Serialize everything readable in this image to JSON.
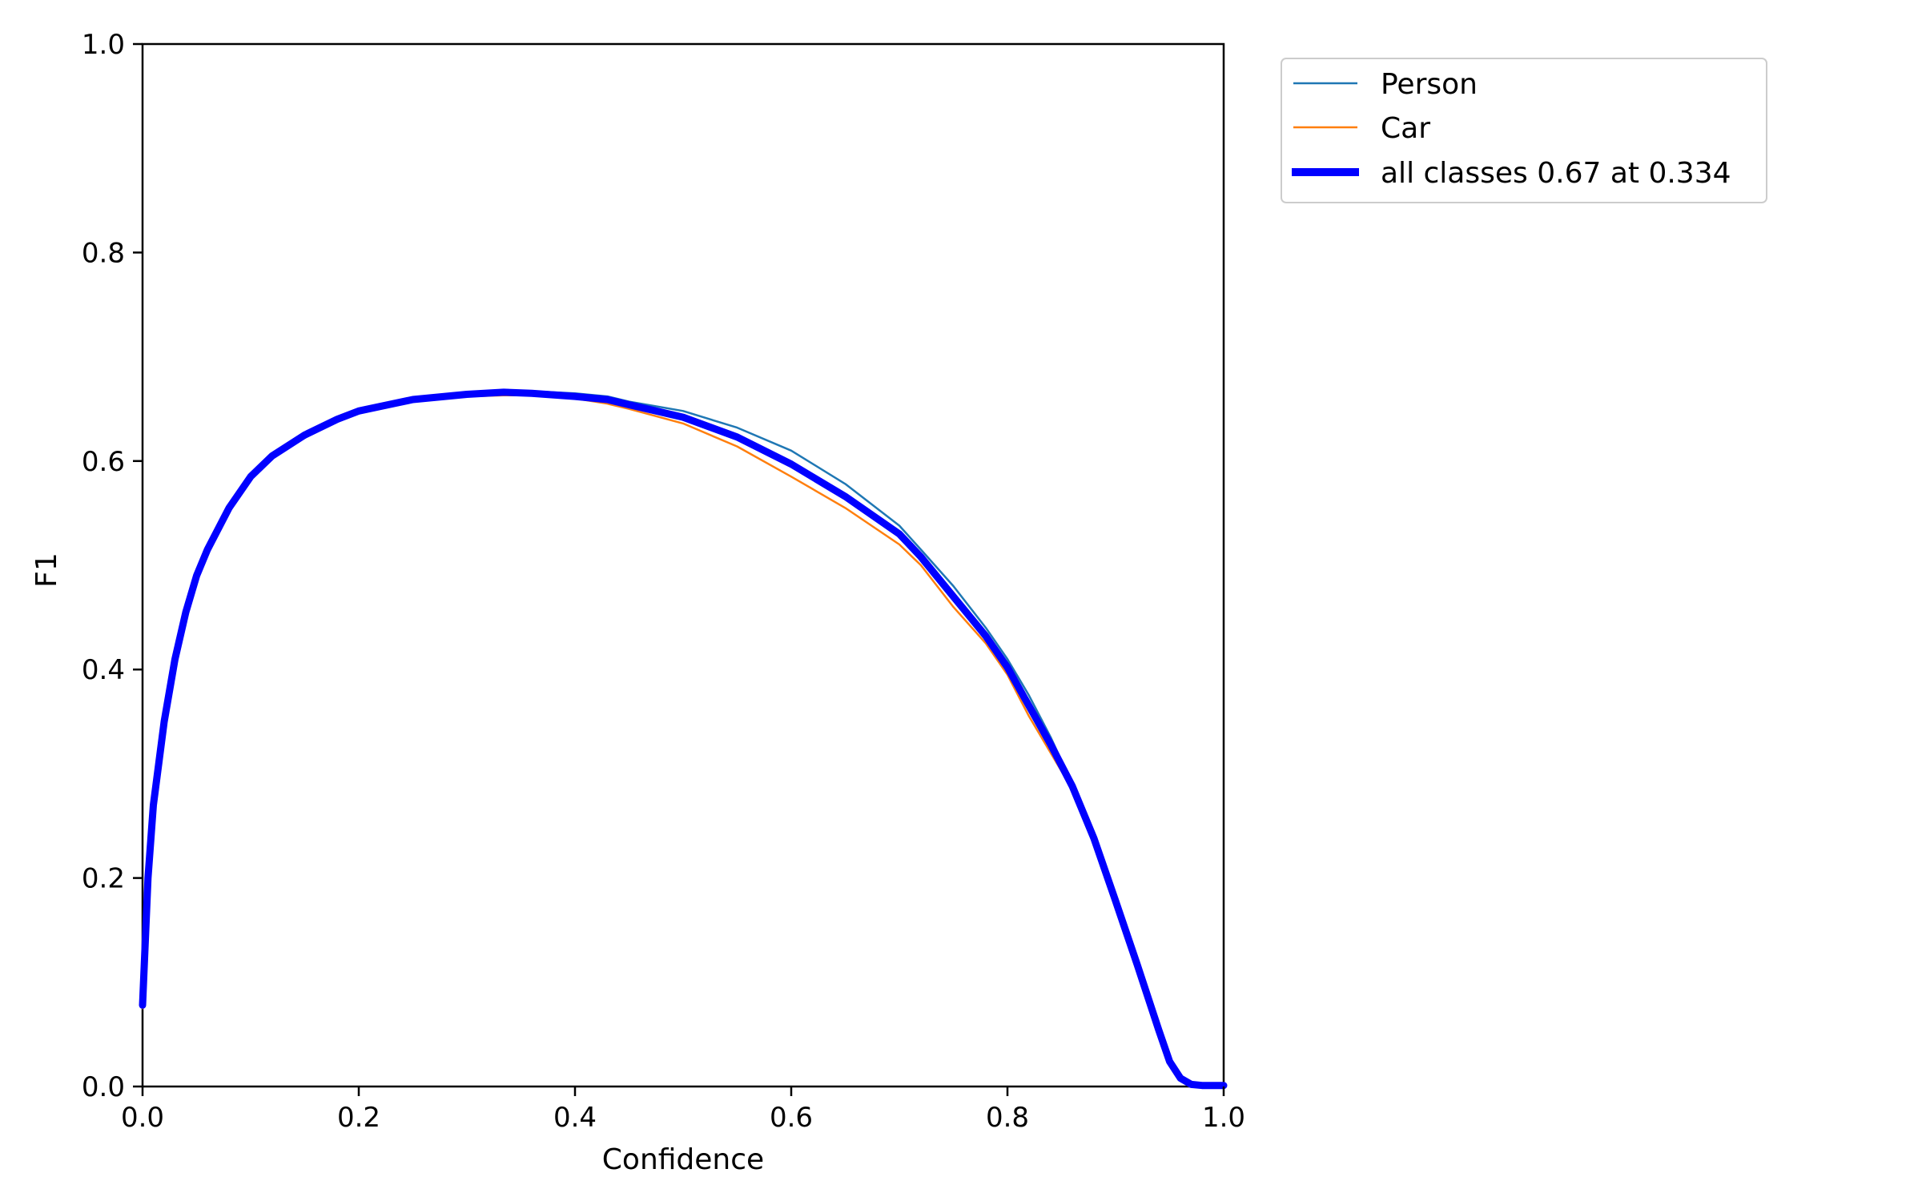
{
  "chart_data": {
    "type": "line",
    "xlabel": "Confidence",
    "ylabel": "F1",
    "xlim": [
      0.0,
      1.0
    ],
    "ylim": [
      0.0,
      1.0
    ],
    "xticks": [
      "0.0",
      "0.2",
      "0.4",
      "0.6",
      "0.8",
      "1.0"
    ],
    "yticks": [
      "0.0",
      "0.2",
      "0.4",
      "0.6",
      "0.8",
      "1.0"
    ],
    "grid": false,
    "legend_position": "outside-top-right",
    "series": [
      {
        "name": "Person",
        "color": "#1f77b4",
        "line": "thin",
        "x": [
          0.0,
          0.005,
          0.01,
          0.02,
          0.03,
          0.04,
          0.05,
          0.06,
          0.08,
          0.1,
          0.12,
          0.15,
          0.18,
          0.2,
          0.25,
          0.3,
          0.334,
          0.36,
          0.4,
          0.43,
          0.45,
          0.5,
          0.55,
          0.6,
          0.65,
          0.7,
          0.72,
          0.75,
          0.78,
          0.8,
          0.82,
          0.84,
          0.86,
          0.88,
          0.9,
          0.92,
          0.94,
          0.95,
          0.96,
          0.97,
          0.98,
          1.0
        ],
        "y": [
          0.08,
          0.2,
          0.27,
          0.35,
          0.41,
          0.455,
          0.49,
          0.515,
          0.555,
          0.585,
          0.605,
          0.625,
          0.64,
          0.648,
          0.66,
          0.665,
          0.668,
          0.667,
          0.665,
          0.662,
          0.657,
          0.648,
          0.632,
          0.61,
          0.578,
          0.538,
          0.515,
          0.48,
          0.44,
          0.41,
          0.375,
          0.335,
          0.29,
          0.24,
          0.18,
          0.118,
          0.055,
          0.025,
          0.008,
          0.002,
          0.001,
          0.001
        ]
      },
      {
        "name": "Car",
        "color": "#ff7f0e",
        "line": "thin",
        "x": [
          0.0,
          0.005,
          0.01,
          0.02,
          0.03,
          0.04,
          0.05,
          0.06,
          0.08,
          0.1,
          0.12,
          0.15,
          0.18,
          0.2,
          0.25,
          0.3,
          0.334,
          0.36,
          0.4,
          0.43,
          0.45,
          0.5,
          0.55,
          0.6,
          0.65,
          0.7,
          0.72,
          0.75,
          0.78,
          0.8,
          0.82,
          0.84,
          0.86,
          0.88,
          0.9,
          0.92,
          0.94,
          0.95,
          0.96,
          0.97,
          0.98,
          1.0
        ],
        "y": [
          0.075,
          0.2,
          0.27,
          0.35,
          0.41,
          0.455,
          0.49,
          0.515,
          0.555,
          0.585,
          0.605,
          0.625,
          0.64,
          0.648,
          0.658,
          0.662,
          0.663,
          0.663,
          0.66,
          0.655,
          0.65,
          0.636,
          0.614,
          0.585,
          0.555,
          0.52,
          0.5,
          0.46,
          0.425,
          0.395,
          0.355,
          0.32,
          0.285,
          0.235,
          0.175,
          0.115,
          0.052,
          0.023,
          0.008,
          0.002,
          0.001,
          0.001
        ]
      },
      {
        "name": "all classes 0.67 at 0.334",
        "color": "#0000ff",
        "line": "thick",
        "x": [
          0.0,
          0.005,
          0.01,
          0.02,
          0.03,
          0.04,
          0.05,
          0.06,
          0.08,
          0.1,
          0.12,
          0.15,
          0.18,
          0.2,
          0.25,
          0.3,
          0.334,
          0.36,
          0.4,
          0.43,
          0.45,
          0.5,
          0.55,
          0.6,
          0.65,
          0.7,
          0.72,
          0.75,
          0.78,
          0.8,
          0.82,
          0.84,
          0.86,
          0.88,
          0.9,
          0.92,
          0.94,
          0.95,
          0.96,
          0.97,
          0.98,
          1.0
        ],
        "y": [
          0.078,
          0.2,
          0.27,
          0.35,
          0.41,
          0.455,
          0.49,
          0.515,
          0.555,
          0.585,
          0.605,
          0.625,
          0.64,
          0.648,
          0.659,
          0.664,
          0.666,
          0.665,
          0.662,
          0.659,
          0.654,
          0.642,
          0.623,
          0.597,
          0.566,
          0.53,
          0.508,
          0.47,
          0.432,
          0.402,
          0.365,
          0.328,
          0.288,
          0.238,
          0.178,
          0.117,
          0.054,
          0.024,
          0.008,
          0.002,
          0.001,
          0.001
        ]
      }
    ]
  }
}
